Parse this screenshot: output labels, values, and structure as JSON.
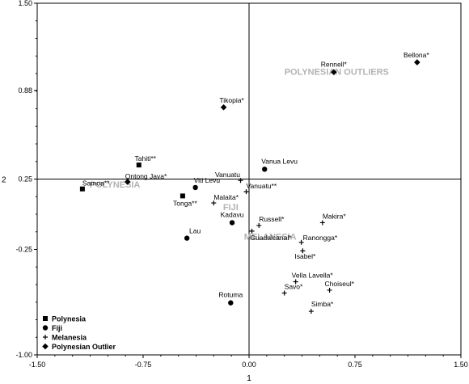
{
  "chart_data": {
    "type": "scatter",
    "xlabel": "1",
    "ylabel": "2",
    "xlim": [
      -1.5,
      1.5
    ],
    "ylim": [
      -1.0,
      1.5
    ],
    "x_ticks": [
      "-1.50",
      "-0.75",
      "0.00",
      "0.75",
      "1.50"
    ],
    "y_ticks": [
      "1.50",
      "0.88",
      "0.25",
      "-0.25",
      "-1.00"
    ],
    "legend_position": "bottom-left",
    "legend": [
      {
        "marker": "square",
        "label": "Polynesia"
      },
      {
        "marker": "circle",
        "label": "Fiji"
      },
      {
        "marker": "plus",
        "label": "Melanesia"
      },
      {
        "marker": "diamond",
        "label": "Polynesian Outlier"
      }
    ],
    "group_labels": [
      {
        "text": "POLYNESIAN OUTLIERS",
        "x": 0.62,
        "y": 0.99
      },
      {
        "text": "POLYNESIA",
        "x": -0.95,
        "y": 0.19
      },
      {
        "text": "FIJI",
        "x": -0.13,
        "y": 0.03
      },
      {
        "text": "MELANESIA",
        "x": 0.15,
        "y": -0.18
      }
    ],
    "points": [
      {
        "label": "Bellona*",
        "group": "Polynesian Outlier",
        "marker": "diamond",
        "x": 1.19,
        "y": 1.08
      },
      {
        "label": "Rennell*",
        "group": "Polynesian Outlier",
        "marker": "diamond",
        "x": 0.6,
        "y": 1.01
      },
      {
        "label": "Tikopia*",
        "group": "Polynesian Outlier",
        "marker": "diamond",
        "x": -0.18,
        "y": 0.76
      },
      {
        "label": "Ontong Java*",
        "group": "Polynesian Outlier",
        "marker": "diamond",
        "x": -0.86,
        "y": 0.23
      },
      {
        "label": "Tahiti**",
        "group": "Polynesia",
        "marker": "square",
        "x": -0.78,
        "y": 0.35
      },
      {
        "label": "Samoa**",
        "group": "Polynesia",
        "marker": "square",
        "x": -1.18,
        "y": 0.18
      },
      {
        "label": "Tonga**",
        "group": "Polynesia",
        "marker": "square",
        "x": -0.47,
        "y": 0.13
      },
      {
        "label": "Viti Levu",
        "group": "Fiji",
        "marker": "circle",
        "x": -0.38,
        "y": 0.19
      },
      {
        "label": "Vanua Levu",
        "group": "Fiji",
        "marker": "circle",
        "x": 0.11,
        "y": 0.32
      },
      {
        "label": "Kadavu",
        "group": "Fiji",
        "marker": "circle",
        "x": -0.12,
        "y": -0.06
      },
      {
        "label": "Lau",
        "group": "Fiji",
        "marker": "circle",
        "x": -0.44,
        "y": -0.17
      },
      {
        "label": "Rotuma",
        "group": "Fiji",
        "marker": "circle",
        "x": -0.13,
        "y": -0.63
      },
      {
        "label": "Vanuatu",
        "group": "Melanesia",
        "marker": "plus",
        "x": -0.06,
        "y": 0.24
      },
      {
        "label": "Vanuatu**",
        "group": "Melanesia",
        "marker": "plus",
        "x": -0.02,
        "y": 0.16
      },
      {
        "label": "Malaita*",
        "group": "Melanesia",
        "marker": "plus",
        "x": -0.25,
        "y": 0.08
      },
      {
        "label": "Russell*",
        "group": "Melanesia",
        "marker": "plus",
        "x": 0.07,
        "y": -0.08
      },
      {
        "label": "Makira*",
        "group": "Melanesia",
        "marker": "plus",
        "x": 0.52,
        "y": -0.06
      },
      {
        "label": "Guadalcanal*",
        "group": "Melanesia",
        "marker": "plus",
        "x": 0.02,
        "y": -0.12
      },
      {
        "label": "Ranongga*",
        "group": "Melanesia",
        "marker": "plus",
        "x": 0.37,
        "y": -0.2
      },
      {
        "label": "Isabel*",
        "group": "Melanesia",
        "marker": "plus",
        "x": 0.38,
        "y": -0.26
      },
      {
        "label": "Vella Lavella*",
        "group": "Melanesia",
        "marker": "plus",
        "x": 0.33,
        "y": -0.48
      },
      {
        "label": "Savo*",
        "group": "Melanesia",
        "marker": "plus",
        "x": 0.25,
        "y": -0.56
      },
      {
        "label": "Choiseul*",
        "group": "Melanesia",
        "marker": "plus",
        "x": 0.57,
        "y": -0.54
      },
      {
        "label": "Simba*",
        "group": "Melanesia",
        "marker": "plus",
        "x": 0.44,
        "y": -0.69
      }
    ]
  }
}
